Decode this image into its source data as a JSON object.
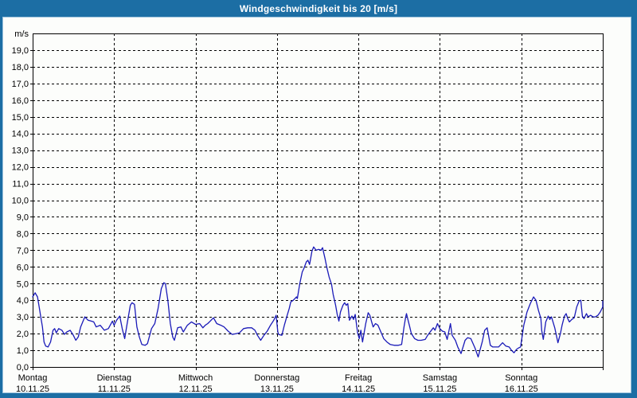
{
  "window": {
    "title": "Windgeschwindigkeit bis 20 [m/s]"
  },
  "colors": {
    "header_bg": "#1c6ea4",
    "page_bg": "#1c6ea4",
    "panel_bg": "#fcfdfb",
    "line": "#1a1ab8",
    "grid": "#000000",
    "text": "#000000",
    "title_text": "#ffffff"
  },
  "chart_data": {
    "type": "line",
    "title": "Windgeschwindigkeit bis 20 [m/s]",
    "unit_label": "m/s",
    "ylim": [
      0,
      20
    ],
    "y_tick_step": 1,
    "grid": "dashed",
    "legend": "none",
    "y_tick_labels": [
      "0,0",
      "1,0",
      "2,0",
      "3,0",
      "4,0",
      "5,0",
      "6,0",
      "7,0",
      "8,0",
      "9,0",
      "10,0",
      "11,0",
      "12,0",
      "13,0",
      "14,0",
      "15,0",
      "16,0",
      "17,0",
      "18,0",
      "19,0"
    ],
    "x_axis": {
      "range_days": 7,
      "days": [
        {
          "name": "Montag",
          "date": "10.11.25"
        },
        {
          "name": "Dienstag",
          "date": "11.11.25"
        },
        {
          "name": "Mittwoch",
          "date": "12.11.25"
        },
        {
          "name": "Donnerstag",
          "date": "13.11.25"
        },
        {
          "name": "Freitag",
          "date": "14.11.25"
        },
        {
          "name": "Samstag",
          "date": "15.11.25"
        },
        {
          "name": "Sonntag",
          "date": "16.11.25"
        }
      ]
    },
    "series": [
      {
        "name": "Windgeschwindigkeit",
        "unit": "m/s",
        "color": "#1a1ab8",
        "points": [
          [
            0.0,
            4.2
          ],
          [
            0.03,
            4.45
          ],
          [
            0.06,
            4.2
          ],
          [
            0.08,
            3.6
          ],
          [
            0.1,
            3.0
          ],
          [
            0.12,
            2.4
          ],
          [
            0.14,
            1.5
          ],
          [
            0.16,
            1.25
          ],
          [
            0.19,
            1.2
          ],
          [
            0.22,
            1.5
          ],
          [
            0.25,
            2.2
          ],
          [
            0.27,
            2.3
          ],
          [
            0.29,
            2.05
          ],
          [
            0.32,
            2.3
          ],
          [
            0.36,
            2.2
          ],
          [
            0.39,
            1.95
          ],
          [
            0.42,
            2.1
          ],
          [
            0.46,
            2.2
          ],
          [
            0.5,
            1.9
          ],
          [
            0.53,
            1.6
          ],
          [
            0.56,
            1.8
          ],
          [
            0.59,
            2.4
          ],
          [
            0.64,
            3.0
          ],
          [
            0.68,
            2.8
          ],
          [
            0.72,
            2.75
          ],
          [
            0.75,
            2.7
          ],
          [
            0.78,
            2.4
          ],
          [
            0.83,
            2.5
          ],
          [
            0.88,
            2.2
          ],
          [
            0.93,
            2.3
          ],
          [
            0.98,
            2.75
          ],
          [
            1.0,
            2.5
          ],
          [
            1.03,
            2.8
          ],
          [
            1.07,
            3.05
          ],
          [
            1.1,
            2.3
          ],
          [
            1.13,
            1.7
          ],
          [
            1.16,
            2.6
          ],
          [
            1.2,
            3.7
          ],
          [
            1.22,
            3.85
          ],
          [
            1.25,
            3.75
          ],
          [
            1.28,
            2.4
          ],
          [
            1.31,
            1.8
          ],
          [
            1.34,
            1.35
          ],
          [
            1.38,
            1.3
          ],
          [
            1.41,
            1.4
          ],
          [
            1.46,
            2.3
          ],
          [
            1.5,
            2.6
          ],
          [
            1.54,
            3.5
          ],
          [
            1.58,
            4.7
          ],
          [
            1.61,
            5.05
          ],
          [
            1.63,
            5.0
          ],
          [
            1.66,
            4.0
          ],
          [
            1.69,
            2.6
          ],
          [
            1.72,
            1.8
          ],
          [
            1.74,
            1.6
          ],
          [
            1.78,
            2.35
          ],
          [
            1.82,
            2.4
          ],
          [
            1.85,
            2.1
          ],
          [
            1.9,
            2.5
          ],
          [
            1.95,
            2.7
          ],
          [
            2.0,
            2.55
          ],
          [
            2.05,
            2.6
          ],
          [
            2.09,
            2.35
          ],
          [
            2.12,
            2.5
          ],
          [
            2.15,
            2.6
          ],
          [
            2.18,
            2.75
          ],
          [
            2.22,
            2.95
          ],
          [
            2.26,
            2.6
          ],
          [
            2.31,
            2.5
          ],
          [
            2.35,
            2.4
          ],
          [
            2.4,
            2.15
          ],
          [
            2.45,
            1.95
          ],
          [
            2.5,
            2.0
          ],
          [
            2.54,
            2.05
          ],
          [
            2.59,
            2.3
          ],
          [
            2.64,
            2.35
          ],
          [
            2.69,
            2.35
          ],
          [
            2.73,
            2.2
          ],
          [
            2.76,
            1.9
          ],
          [
            2.8,
            1.6
          ],
          [
            2.84,
            1.9
          ],
          [
            2.88,
            2.15
          ],
          [
            2.92,
            2.5
          ],
          [
            2.96,
            2.8
          ],
          [
            2.99,
            3.1
          ],
          [
            3.01,
            2.1
          ],
          [
            3.02,
            1.95
          ],
          [
            3.06,
            1.9
          ],
          [
            3.09,
            2.5
          ],
          [
            3.12,
            3.0
          ],
          [
            3.15,
            3.5
          ],
          [
            3.17,
            3.9
          ],
          [
            3.2,
            4.0
          ],
          [
            3.22,
            4.1
          ],
          [
            3.24,
            4.2
          ],
          [
            3.25,
            4.1
          ],
          [
            3.28,
            5.0
          ],
          [
            3.31,
            5.7
          ],
          [
            3.33,
            5.9
          ],
          [
            3.36,
            6.3
          ],
          [
            3.38,
            6.4
          ],
          [
            3.4,
            6.15
          ],
          [
            3.43,
            6.95
          ],
          [
            3.45,
            7.2
          ],
          [
            3.48,
            7.0
          ],
          [
            3.51,
            7.05
          ],
          [
            3.54,
            7.0
          ],
          [
            3.56,
            7.15
          ],
          [
            3.59,
            6.5
          ],
          [
            3.61,
            6.0
          ],
          [
            3.64,
            5.4
          ],
          [
            3.67,
            4.95
          ],
          [
            3.69,
            4.35
          ],
          [
            3.72,
            3.7
          ],
          [
            3.74,
            3.15
          ],
          [
            3.76,
            2.75
          ],
          [
            3.78,
            3.3
          ],
          [
            3.81,
            3.7
          ],
          [
            3.83,
            3.85
          ],
          [
            3.85,
            3.7
          ],
          [
            3.87,
            3.8
          ],
          [
            3.89,
            2.8
          ],
          [
            3.92,
            3.05
          ],
          [
            3.94,
            2.85
          ],
          [
            3.96,
            3.15
          ],
          [
            3.99,
            2.05
          ],
          [
            4.01,
            1.7
          ],
          [
            4.03,
            2.2
          ],
          [
            4.05,
            1.5
          ],
          [
            4.09,
            2.6
          ],
          [
            4.12,
            3.25
          ],
          [
            4.14,
            3.1
          ],
          [
            4.16,
            2.75
          ],
          [
            4.18,
            2.4
          ],
          [
            4.21,
            2.6
          ],
          [
            4.24,
            2.5
          ],
          [
            4.28,
            2.05
          ],
          [
            4.31,
            1.7
          ],
          [
            4.35,
            1.5
          ],
          [
            4.39,
            1.35
          ],
          [
            4.44,
            1.3
          ],
          [
            4.49,
            1.3
          ],
          [
            4.53,
            1.35
          ],
          [
            4.56,
            2.4
          ],
          [
            4.58,
            3.0
          ],
          [
            4.59,
            3.2
          ],
          [
            4.61,
            2.8
          ],
          [
            4.63,
            2.4
          ],
          [
            4.65,
            2.0
          ],
          [
            4.69,
            1.7
          ],
          [
            4.73,
            1.6
          ],
          [
            4.77,
            1.6
          ],
          [
            4.82,
            1.65
          ],
          [
            4.85,
            1.9
          ],
          [
            4.88,
            2.1
          ],
          [
            4.92,
            2.35
          ],
          [
            4.94,
            2.2
          ],
          [
            4.97,
            2.6
          ],
          [
            5.0,
            2.3
          ],
          [
            5.03,
            2.15
          ],
          [
            5.06,
            2.1
          ],
          [
            5.09,
            1.65
          ],
          [
            5.13,
            2.6
          ],
          [
            5.15,
            1.9
          ],
          [
            5.19,
            1.6
          ],
          [
            5.22,
            1.2
          ],
          [
            5.26,
            0.8
          ],
          [
            5.31,
            1.6
          ],
          [
            5.34,
            1.75
          ],
          [
            5.38,
            1.7
          ],
          [
            5.43,
            1.15
          ],
          [
            5.47,
            0.6
          ],
          [
            5.52,
            1.5
          ],
          [
            5.55,
            2.2
          ],
          [
            5.58,
            2.35
          ],
          [
            5.62,
            1.3
          ],
          [
            5.65,
            1.2
          ],
          [
            5.69,
            1.2
          ],
          [
            5.72,
            1.2
          ],
          [
            5.77,
            1.45
          ],
          [
            5.81,
            1.25
          ],
          [
            5.85,
            1.2
          ],
          [
            5.88,
            1.0
          ],
          [
            5.91,
            0.85
          ],
          [
            5.94,
            1.05
          ],
          [
            5.97,
            1.15
          ],
          [
            5.99,
            1.2
          ],
          [
            6.0,
            1.5
          ],
          [
            6.03,
            2.5
          ],
          [
            6.07,
            3.3
          ],
          [
            6.11,
            3.8
          ],
          [
            6.15,
            4.2
          ],
          [
            6.18,
            4.0
          ],
          [
            6.21,
            3.4
          ],
          [
            6.24,
            2.9
          ],
          [
            6.25,
            2.2
          ],
          [
            6.27,
            1.65
          ],
          [
            6.3,
            2.7
          ],
          [
            6.33,
            3.05
          ],
          [
            6.35,
            2.85
          ],
          [
            6.37,
            3.0
          ],
          [
            6.41,
            2.35
          ],
          [
            6.45,
            1.45
          ],
          [
            6.48,
            2.0
          ],
          [
            6.5,
            2.5
          ],
          [
            6.53,
            3.05
          ],
          [
            6.55,
            3.2
          ],
          [
            6.57,
            2.9
          ],
          [
            6.59,
            2.7
          ],
          [
            6.62,
            2.85
          ],
          [
            6.65,
            2.95
          ],
          [
            6.68,
            3.6
          ],
          [
            6.71,
            3.95
          ],
          [
            6.73,
            4.0
          ],
          [
            6.75,
            3.05
          ],
          [
            6.77,
            2.9
          ],
          [
            6.8,
            3.2
          ],
          [
            6.82,
            3.0
          ],
          [
            6.85,
            3.1
          ],
          [
            6.88,
            3.0
          ],
          [
            6.91,
            3.0
          ],
          [
            6.94,
            3.1
          ],
          [
            6.97,
            3.3
          ],
          [
            7.0,
            3.6
          ],
          [
            7.03,
            3.95
          ]
        ]
      }
    ]
  }
}
